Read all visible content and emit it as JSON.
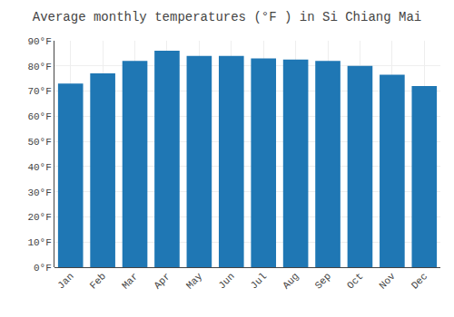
{
  "chart_data": {
    "type": "bar",
    "title": "Average monthly temperatures (°F ) in Si Chiang Mai",
    "categories": [
      "Jan",
      "Feb",
      "Mar",
      "Apr",
      "May",
      "Jun",
      "Jul",
      "Aug",
      "Sep",
      "Oct",
      "Nov",
      "Dec"
    ],
    "values": [
      73,
      77,
      82,
      86,
      84,
      84,
      83,
      82.5,
      82,
      80,
      76.5,
      72
    ],
    "ylim": [
      0,
      90
    ],
    "yticks": [
      {
        "value": 0,
        "label": "0°F"
      },
      {
        "value": 10,
        "label": "10°F"
      },
      {
        "value": 20,
        "label": "20°F"
      },
      {
        "value": 30,
        "label": "30°F"
      },
      {
        "value": 40,
        "label": "40°F"
      },
      {
        "value": 50,
        "label": "50°F"
      },
      {
        "value": 60,
        "label": "60°F"
      },
      {
        "value": 70,
        "label": "70°F"
      },
      {
        "value": 80,
        "label": "80°F"
      },
      {
        "value": 90,
        "label": "90°F"
      }
    ],
    "grid": true
  }
}
